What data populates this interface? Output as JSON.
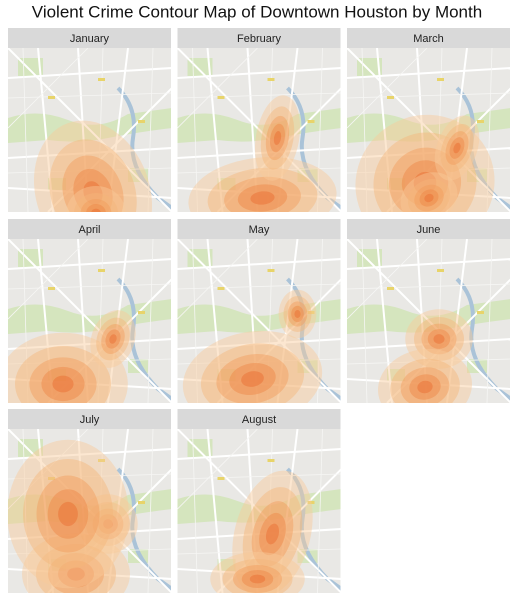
{
  "title": "Violent Crime Contour Map of Downtown Houston by Month",
  "panels": [
    {
      "label": "January"
    },
    {
      "label": "February"
    },
    {
      "label": "March"
    },
    {
      "label": "April"
    },
    {
      "label": "May"
    },
    {
      "label": "June"
    },
    {
      "label": "July"
    },
    {
      "label": "August"
    }
  ]
}
